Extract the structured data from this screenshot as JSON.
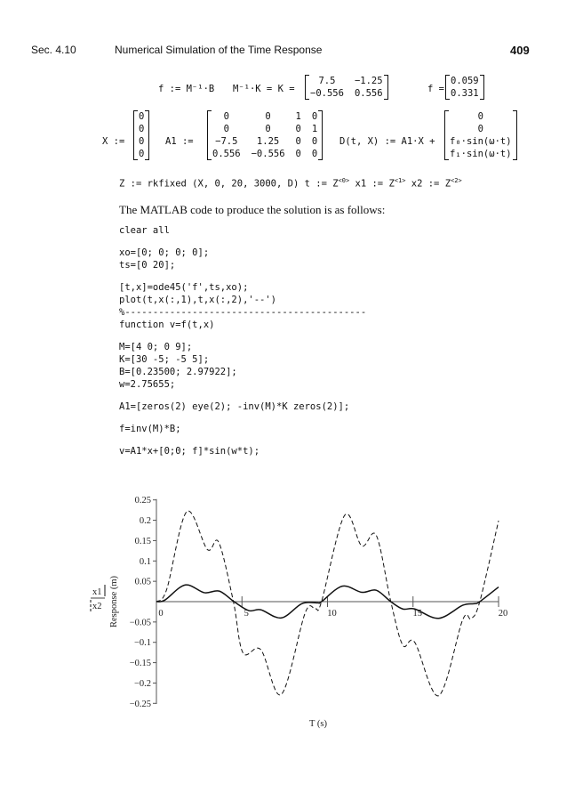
{
  "header": {
    "section": "Sec. 4.10",
    "title": "Numerical Simulation of the Time Response",
    "page": "409"
  },
  "mathcad": {
    "f_def": "f := M⁻¹·B",
    "k_lhs": "M⁻¹·K = K =",
    "k_matrix": [
      [
        "7.5",
        "−1.25"
      ],
      [
        "−0.556",
        "0.556"
      ]
    ],
    "f_lhs": "f =",
    "f_vector": [
      [
        "0.059"
      ],
      [
        "0.331"
      ]
    ],
    "x_lhs": "X :=",
    "x_vector": [
      [
        "0"
      ],
      [
        "0"
      ],
      [
        "0"
      ],
      [
        "0"
      ]
    ],
    "a1_lhs": "A1 :=",
    "a1_matrix": [
      [
        "0",
        "0",
        "1",
        "0"
      ],
      [
        "0",
        "0",
        "0",
        "1"
      ],
      [
        "−7.5",
        "1.25",
        "0",
        "0"
      ],
      [
        "0.556",
        "−0.556",
        "0",
        "0"
      ]
    ],
    "d_lhs": "D(t, X) := A1·X +",
    "d_vector": [
      [
        "0"
      ],
      [
        "0"
      ],
      [
        "f₀·sin(ω·t)"
      ],
      [
        "f₁·sin(ω·t)"
      ]
    ],
    "z_line": "Z := rkfixed (X, 0, 20, 3000, D) t := Z<0> x1 := Z<1> x2 := Z<2>"
  },
  "intro": "The MATLAB code to produce the solution is as follows:",
  "code": {
    "block1": [
      "clear all"
    ],
    "block2": [
      "xo=[0; 0; 0; 0];",
      "ts=[0 20];"
    ],
    "block3": [
      "[t,x]=ode45('f',ts,xo);",
      "plot(t,x(:,1),t,x(:,2),'--')",
      "%-------------------------------------------",
      "function v=f(t,x)"
    ],
    "block4": [
      "M=[4 0; 0 9];",
      "K=[30 -5; -5 5];",
      "B=[0.23500; 2.97922];",
      "w=2.75655;"
    ],
    "block5": [
      "A1=[zeros(2) eye(2); -inv(M)*K zeros(2)];"
    ],
    "block6": [
      "f=inv(M)*B;"
    ],
    "block7": [
      "v=A1*x+[0;0; f]*sin(w*t);"
    ]
  },
  "chart_data": {
    "type": "line",
    "xlabel": "T (s)",
    "ylabel": "Response (m)",
    "xlim": [
      0,
      20
    ],
    "ylim": [
      -0.25,
      0.25
    ],
    "xticks": [
      "0",
      "5",
      "10",
      "15",
      "20"
    ],
    "yticks": [
      "0.25",
      "0.2",
      "0.15",
      "0.1",
      "0.05",
      "−0.05",
      "−0.1",
      "−0.15",
      "−0.2",
      "−0.25"
    ],
    "grid": false,
    "legend": {
      "placement": "left",
      "entries": [
        "x1",
        "x2"
      ]
    },
    "series": [
      {
        "name": "x1",
        "style": "solid",
        "x": [
          0,
          0.5,
          1.68,
          2.8,
          3.67,
          4.54,
          5.4,
          6.1,
          7.3,
          8.5,
          9.4,
          9.65,
          10.86,
          12.0,
          12.85,
          13.7,
          14.4,
          15.1,
          16.5,
          17.9,
          18.6,
          18.9,
          20
        ],
        "y": [
          0,
          0.004,
          0.041,
          0.022,
          0.026,
          0,
          -0.022,
          -0.02,
          -0.04,
          -0.005,
          -0.003,
          0,
          0.038,
          0.023,
          0.028,
          0,
          -0.018,
          -0.018,
          -0.041,
          -0.009,
          -0.005,
          0,
          0.036
        ]
      },
      {
        "name": "x2",
        "style": "dashed",
        "x": [
          0,
          0.6,
          1.77,
          2.98,
          3.64,
          4.5,
          5.06,
          6.1,
          7.3,
          8.7,
          9.3,
          9.65,
          11.0,
          12.0,
          12.85,
          13.7,
          14.4,
          15.1,
          16.5,
          17.9,
          18.4,
          18.9,
          20
        ],
        "y": [
          0,
          0.03,
          0.221,
          0.128,
          0.146,
          0,
          -0.126,
          -0.118,
          -0.228,
          -0.027,
          -0.018,
          0,
          0.212,
          0.137,
          0.163,
          0,
          -0.107,
          -0.1,
          -0.231,
          -0.045,
          -0.042,
          0,
          0.199
        ]
      }
    ]
  }
}
